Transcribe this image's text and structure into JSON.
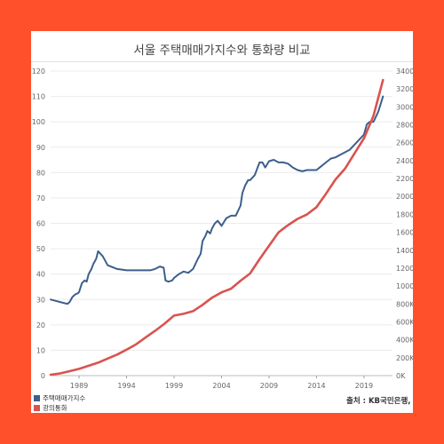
{
  "legend": [
    {
      "label": "주택매매가지수",
      "color": "#3d5f8c"
    },
    {
      "label": "광의통화",
      "color": "#d9534f"
    }
  ],
  "source": "출처 : KB국민은행, 한국",
  "chart_data": {
    "type": "line",
    "title": "서울 주택매매가지수와 통화량 비교",
    "xlabel": "",
    "ylabel": "",
    "xlim": [
      1986,
      2022
    ],
    "xticks": [
      1989,
      1994,
      1999,
      2004,
      2009,
      2014,
      2019
    ],
    "y_left_lim": [
      0,
      120
    ],
    "y_left_ticks": [
      0,
      10,
      20,
      30,
      40,
      50,
      60,
      70,
      80,
      90,
      100,
      110,
      120
    ],
    "y_right_lim": [
      0,
      3400
    ],
    "y_right_tick_labels": [
      "0K",
      "200K",
      "400K",
      "600K",
      "800K",
      "1000K",
      "1200K",
      "1400K",
      "1600K",
      "1800K",
      "2000K",
      "2200K",
      "2400K",
      "2600K",
      "2800K",
      "3000K",
      "3200K",
      "3400K"
    ],
    "grid": true,
    "legend_position": "bottom-left",
    "series": [
      {
        "name": "주택매매가지수",
        "color": "#3d5f8c",
        "axis": "left",
        "x": [
          1986,
          1986.5,
          1987,
          1987.5,
          1987.8,
          1988,
          1988.3,
          1988.6,
          1988.9,
          1989,
          1989.3,
          1989.6,
          1989.8,
          1990,
          1990.3,
          1990.5,
          1990.8,
          1991,
          1991.5,
          1992,
          1993,
          1994,
          1995,
          1996,
          1996.5,
          1997,
          1997.5,
          1997.9,
          1998.1,
          1998.4,
          1998.8,
          1999,
          1999.5,
          2000,
          2000.5,
          2001,
          2001.5,
          2001.8,
          2002,
          2002.3,
          2002.5,
          2002.8,
          2003,
          2003.3,
          2003.6,
          2004,
          2004.5,
          2005,
          2005.5,
          2006,
          2006.2,
          2006.5,
          2006.8,
          2007,
          2007.5,
          2008,
          2008.3,
          2008.6,
          2009,
          2009.5,
          2010,
          2010.5,
          2011,
          2011.5,
          2012,
          2012.5,
          2013,
          2013.5,
          2014,
          2014.5,
          2015,
          2015.5,
          2016,
          2016.5,
          2017,
          2017.5,
          2018,
          2018.5,
          2019,
          2019.3,
          2019.6,
          2020,
          2020.5,
          2021
        ],
        "values": [
          30,
          29.5,
          29,
          28.5,
          28.3,
          29,
          31,
          32,
          32.5,
          33,
          36.5,
          37.5,
          37,
          40,
          42,
          44,
          46,
          49,
          47,
          43.5,
          42,
          41.5,
          41.5,
          41.5,
          41.5,
          42,
          43,
          42.5,
          37.5,
          37,
          37.5,
          38.5,
          40,
          41,
          40.5,
          42,
          46,
          48,
          53,
          55,
          57,
          56,
          58,
          60,
          61,
          59,
          62,
          63,
          63,
          67,
          72,
          75,
          77,
          77,
          79,
          84,
          84,
          82,
          84.5,
          85,
          84,
          84,
          83.5,
          82,
          81,
          80.5,
          81,
          81,
          81,
          82.5,
          84,
          85.5,
          86,
          87,
          88,
          89,
          91,
          93,
          95,
          99,
          100,
          100,
          104,
          110
        ]
      },
      {
        "name": "광의통화",
        "color": "#d9534f",
        "axis": "right",
        "x": [
          1986,
          1987,
          1988,
          1989,
          1990,
          1991,
          1992,
          1993,
          1994,
          1995,
          1996,
          1997,
          1998,
          1999,
          2000,
          2001,
          2002,
          2003,
          2004,
          2005,
          2006,
          2007,
          2008,
          2009,
          2010,
          2011,
          2012,
          2013,
          2014,
          2015,
          2016,
          2017,
          2018,
          2019,
          2020,
          2021
        ],
        "values": [
          10,
          25,
          50,
          75,
          110,
          145,
          190,
          235,
          290,
          350,
          425,
          500,
          580,
          670,
          690,
          720,
          790,
          870,
          930,
          970,
          1060,
          1140,
          1300,
          1450,
          1600,
          1680,
          1750,
          1800,
          1880,
          2030,
          2190,
          2310,
          2480,
          2650,
          2900,
          3300
        ]
      }
    ]
  }
}
